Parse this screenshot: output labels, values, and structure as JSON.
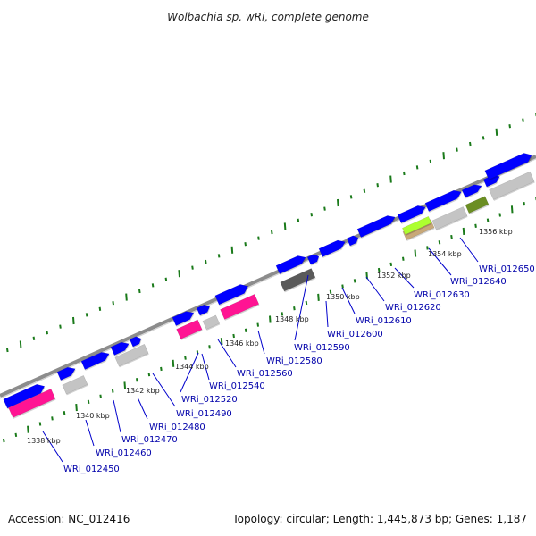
{
  "title": "Wolbachia sp. wRi, complete genome",
  "accession": "Accession: NC_012416",
  "summary": "Topology: circular; Length: 1,445,873 bp; Genes: 1,187",
  "colors": {
    "backbone": "#8c8c8c",
    "cds": "#0000ff",
    "pink": "#ff1493",
    "grey": "#c4c4c4",
    "dark": "#5a5a5a",
    "lime": "#adff2f",
    "olive": "#6b8e23",
    "tan": "#c8a878",
    "tick": "#1a7a1a",
    "label_line": "#0000cc"
  },
  "kbp_labels": [
    "1338 kbp",
    "1340 kbp",
    "1342 kbp",
    "1344 kbp",
    "1346 kbp",
    "1348 kbp",
    "1350 kbp",
    "1352 kbp",
    "1354 kbp",
    "1356 kbp"
  ],
  "loci": [
    "WRi_012450",
    "WRi_012460",
    "WRi_012470",
    "WRi_012480",
    "WRi_012490",
    "WRi_012520",
    "WRi_012540",
    "WRi_012560",
    "WRi_012580",
    "WRi_012590",
    "WRi_012600",
    "WRi_012610",
    "WRi_012620",
    "WRi_012630",
    "WRi_012640",
    "WRi_012650"
  ]
}
